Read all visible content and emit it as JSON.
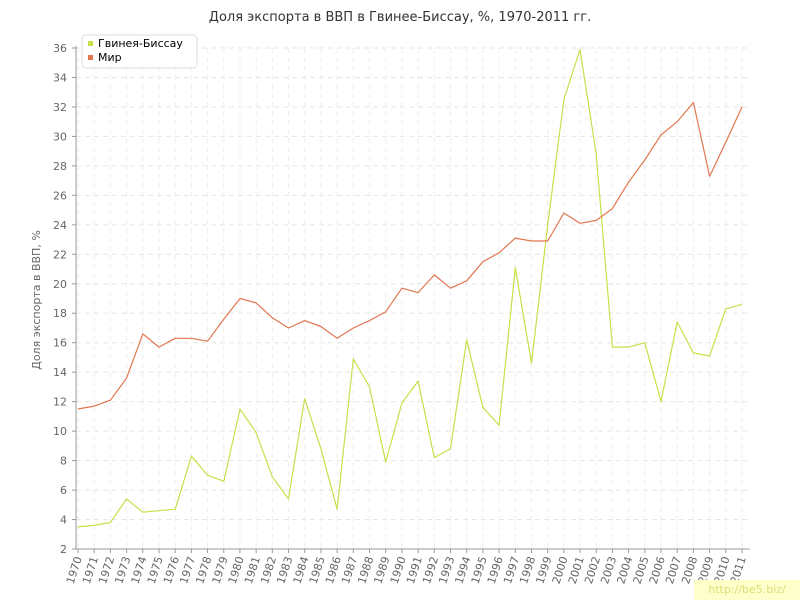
{
  "chart_data": {
    "type": "line",
    "title": "Доля экспорта в ВВП в Гвинее-Биссау, %, 1970-2011 гг.",
    "ylabel": "Доля экспорта в ВВП, %",
    "xlabel": "",
    "ylim": [
      2,
      36
    ],
    "yticks": [
      2,
      4,
      6,
      8,
      10,
      12,
      14,
      16,
      18,
      20,
      22,
      24,
      26,
      28,
      30,
      32,
      34,
      36
    ],
    "grid": true,
    "legend_position": "top-left",
    "categories": [
      "1970",
      "1971",
      "1972",
      "1973",
      "1974",
      "1975",
      "1976",
      "1977",
      "1978",
      "1979",
      "1980",
      "1981",
      "1982",
      "1983",
      "1984",
      "1985",
      "1986",
      "1987",
      "1988",
      "1989",
      "1990",
      "1991",
      "1992",
      "1993",
      "1994",
      "1995",
      "1996",
      "1997",
      "1998",
      "1999",
      "2000",
      "2001",
      "2002",
      "2003",
      "2004",
      "2005",
      "2006",
      "2007",
      "2008",
      "2009",
      "2010",
      "2011"
    ],
    "series": [
      {
        "name": "Гвинея-Биссау",
        "color": "#c5e14a",
        "values": [
          3.5,
          3.6,
          3.8,
          5.4,
          4.5,
          4.6,
          4.7,
          8.3,
          7.0,
          6.6,
          11.5,
          9.9,
          6.9,
          5.4,
          12.2,
          8.8,
          4.7,
          14.9,
          13.0,
          7.9,
          11.9,
          13.4,
          8.2,
          8.8,
          16.2,
          11.6,
          10.4,
          21.1,
          14.6,
          24.0,
          32.5,
          35.9,
          28.8,
          15.7,
          15.7,
          16.0,
          12.0,
          17.4,
          15.3,
          15.1,
          18.3,
          18.6
        ]
      },
      {
        "name": "Мир",
        "color": "#e27650",
        "values": [
          11.5,
          11.7,
          12.1,
          13.6,
          16.6,
          15.7,
          16.3,
          16.3,
          16.1,
          17.6,
          19.0,
          18.7,
          17.7,
          17.0,
          17.5,
          17.1,
          16.3,
          17.0,
          17.5,
          18.1,
          19.7,
          19.4,
          20.6,
          19.7,
          20.2,
          21.5,
          22.1,
          23.1,
          22.9,
          22.9,
          24.8,
          24.1,
          24.3,
          25.1,
          26.9,
          28.4,
          30.1,
          31.0,
          32.3,
          27.3,
          29.6,
          32.0
        ]
      }
    ]
  },
  "watermark": "http://be5.biz/"
}
